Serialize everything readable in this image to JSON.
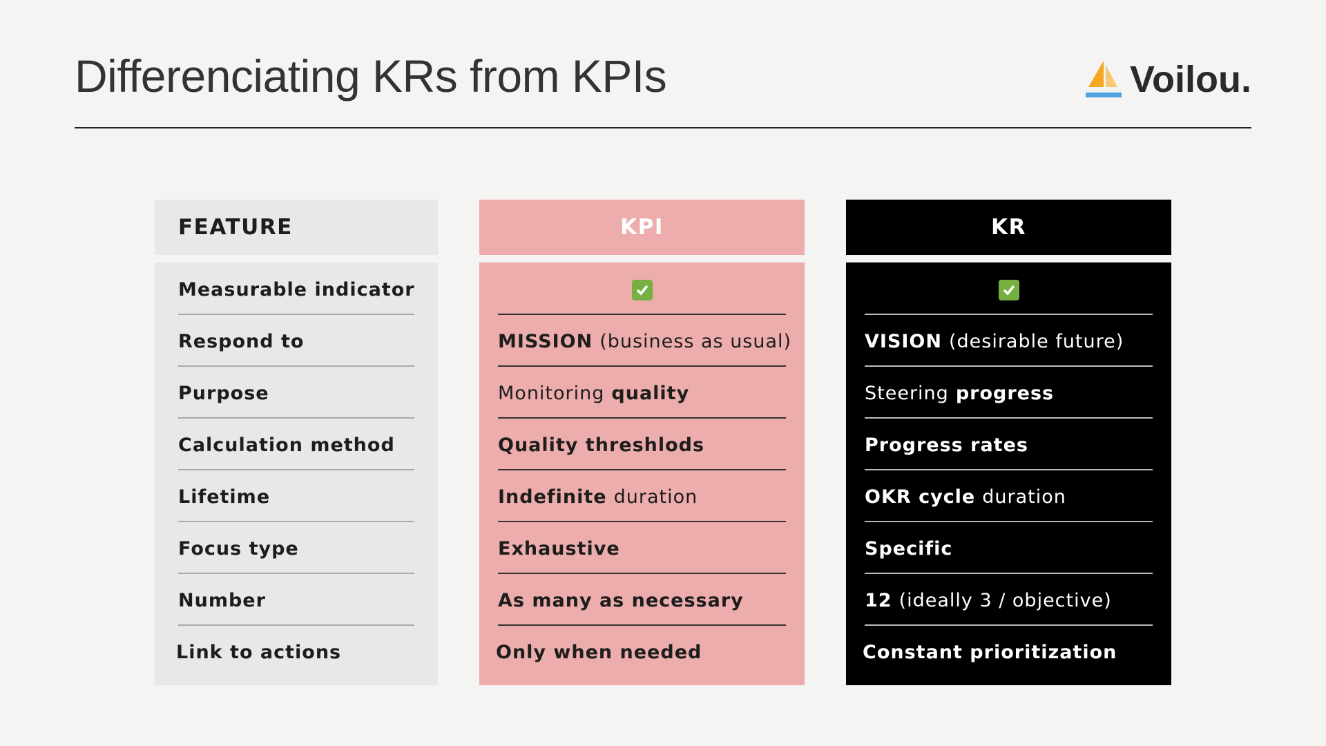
{
  "header": {
    "title": "Differenciating KRs from KPIs",
    "brand": "Voilou."
  },
  "table": {
    "columns": [
      "FEATURE",
      "KPI",
      "KR"
    ],
    "rows": [
      [
        [
          {
            "text": "Measurable indicator",
            "strong": true
          }
        ],
        [
          {
            "check": true
          }
        ],
        [
          {
            "check": true
          }
        ]
      ],
      [
        [
          {
            "text": "Respond to",
            "strong": true
          }
        ],
        [
          {
            "text": "MISSION",
            "strong": true
          },
          {
            "text": "(business as usual)",
            "strong": false
          }
        ],
        [
          {
            "text": "VISION",
            "strong": true
          },
          {
            "text": "(desirable future)",
            "strong": false
          }
        ]
      ],
      [
        [
          {
            "text": "Purpose",
            "strong": true
          }
        ],
        [
          {
            "text": "Monitoring",
            "strong": false
          },
          {
            "text": "quality",
            "strong": true
          }
        ],
        [
          {
            "text": "Steering",
            "strong": false
          },
          {
            "text": "progress",
            "strong": true
          }
        ]
      ],
      [
        [
          {
            "text": "Calculation method",
            "strong": true
          }
        ],
        [
          {
            "text": "Quality threshlods",
            "strong": true
          }
        ],
        [
          {
            "text": "Progress rates",
            "strong": true
          }
        ]
      ],
      [
        [
          {
            "text": "Lifetime",
            "strong": true
          }
        ],
        [
          {
            "text": "Indefinite",
            "strong": true
          },
          {
            "text": "duration",
            "strong": false
          }
        ],
        [
          {
            "text": "OKR cycle",
            "strong": true
          },
          {
            "text": "duration",
            "strong": false
          }
        ]
      ],
      [
        [
          {
            "text": "Focus type",
            "strong": true
          }
        ],
        [
          {
            "text": "Exhaustive",
            "strong": true
          }
        ],
        [
          {
            "text": "Specific",
            "strong": true
          }
        ]
      ],
      [
        [
          {
            "text": "Number",
            "strong": true
          }
        ],
        [
          {
            "text": "As many as necessary",
            "strong": true
          }
        ],
        [
          {
            "text": "12",
            "strong": true
          },
          {
            "text": "(ideally 3 / objective)",
            "strong": false
          }
        ]
      ],
      [
        [
          {
            "text": "Link to actions",
            "strong": true
          }
        ],
        [
          {
            "text": "Only when needed",
            "strong": true
          }
        ],
        [
          {
            "text": "Constant prioritization",
            "strong": true
          }
        ]
      ]
    ]
  }
}
